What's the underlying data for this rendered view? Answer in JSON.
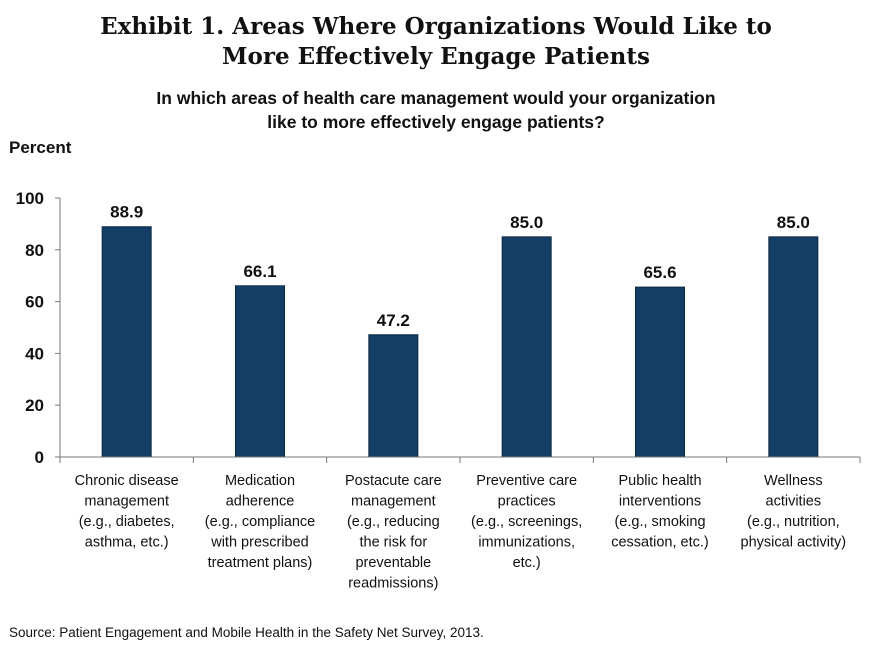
{
  "exhibit": {
    "title_line1": "Exhibit 1. Areas Where Organizations Would Like to",
    "title_line2": "More Effectively Engage Patients"
  },
  "source": "Source: Patient Engagement and Mobile Health in the Safety Net Survey, 2013.",
  "colors": {
    "bar": "#133f66",
    "bar_edge": "#0b2742",
    "axis": "#777777"
  },
  "chart_data": {
    "type": "bar",
    "title": "Exhibit 1. Areas Where Organizations Would Like to More Effectively Engage Patients",
    "subtitle_lines": [
      "In which areas of health care management would your organization",
      "like to more effectively engage patients?"
    ],
    "ylabel": "Percent",
    "xlabel": "",
    "ylim": [
      0,
      100
    ],
    "yticks": [
      0,
      20,
      40,
      60,
      80,
      100
    ],
    "grid": false,
    "categories": [
      [
        "Chronic disease",
        "management",
        "(e.g., diabetes,",
        "asthma, etc.)"
      ],
      [
        "Medication",
        "adherence",
        "(e.g., compliance",
        "with prescribed",
        "treatment plans)"
      ],
      [
        "Postacute care",
        "management",
        "(e.g., reducing",
        "the risk for",
        "preventable",
        "readmissions)"
      ],
      [
        "Preventive care",
        "practices",
        "(e.g., screenings,",
        "immunizations,",
        "etc.)"
      ],
      [
        "Public health",
        "interventions",
        "(e.g., smoking",
        "cessation, etc.)"
      ],
      [
        "Wellness",
        "activities",
        "(e.g., nutrition,",
        "physical activity)"
      ]
    ],
    "values": [
      88.9,
      66.1,
      47.2,
      85.0,
      65.6,
      85.0
    ],
    "value_labels": [
      "88.9",
      "66.1",
      "47.2",
      "85.0",
      "65.6",
      "85.0"
    ]
  }
}
